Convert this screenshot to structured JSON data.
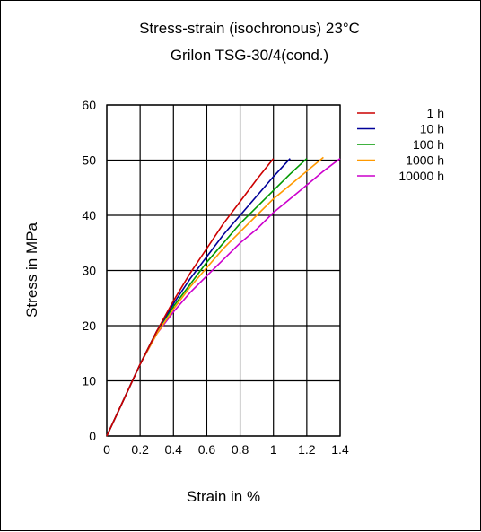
{
  "chart_data": {
    "type": "line",
    "title": "Stress-strain (isochronous) 23°C",
    "subtitle": "Grilon TSG-30/4(cond.)",
    "xlabel": "Strain in %",
    "ylabel": "Stress in MPa",
    "xlim": [
      0,
      1.4
    ],
    "ylim": [
      0,
      60
    ],
    "xticks": [
      "0",
      "0.2",
      "0.4",
      "0.6",
      "0.8",
      "1",
      "1.2",
      "1.4"
    ],
    "yticks": [
      "0",
      "10",
      "20",
      "30",
      "40",
      "50",
      "60"
    ],
    "grid": true,
    "legend_position": "right",
    "series": [
      {
        "name": "1 h",
        "color": "#cc0000",
        "points": [
          [
            0,
            0
          ],
          [
            0.1,
            6.5
          ],
          [
            0.2,
            13
          ],
          [
            0.3,
            19
          ],
          [
            0.4,
            24.5
          ],
          [
            0.5,
            29.5
          ],
          [
            0.6,
            34
          ],
          [
            0.7,
            38.5
          ],
          [
            0.8,
            42.5
          ],
          [
            0.9,
            46.5
          ],
          [
            1.0,
            50.3
          ]
        ]
      },
      {
        "name": "10 h",
        "color": "#000099",
        "points": [
          [
            0,
            0
          ],
          [
            0.1,
            6.5
          ],
          [
            0.2,
            13
          ],
          [
            0.3,
            19
          ],
          [
            0.4,
            24
          ],
          [
            0.5,
            28.5
          ],
          [
            0.6,
            32.5
          ],
          [
            0.7,
            36.5
          ],
          [
            0.8,
            40
          ],
          [
            0.9,
            43.5
          ],
          [
            1.0,
            47
          ],
          [
            1.1,
            50.3
          ]
        ]
      },
      {
        "name": "100 h",
        "color": "#009900",
        "points": [
          [
            0,
            0
          ],
          [
            0.1,
            6.5
          ],
          [
            0.2,
            13
          ],
          [
            0.3,
            19
          ],
          [
            0.4,
            23.5
          ],
          [
            0.5,
            27.5
          ],
          [
            0.6,
            31.5
          ],
          [
            0.7,
            35
          ],
          [
            0.8,
            38.5
          ],
          [
            0.9,
            41.5
          ],
          [
            1.0,
            44.5
          ],
          [
            1.1,
            47.5
          ],
          [
            1.2,
            50.3
          ]
        ]
      },
      {
        "name": "1000 h",
        "color": "#ff9900",
        "points": [
          [
            0,
            0
          ],
          [
            0.1,
            6.5
          ],
          [
            0.2,
            13
          ],
          [
            0.3,
            18.5
          ],
          [
            0.4,
            23
          ],
          [
            0.5,
            27
          ],
          [
            0.6,
            30.5
          ],
          [
            0.7,
            34
          ],
          [
            0.8,
            37
          ],
          [
            0.9,
            40
          ],
          [
            1.0,
            43
          ],
          [
            1.1,
            45.5
          ],
          [
            1.2,
            48
          ],
          [
            1.3,
            50.5
          ]
        ]
      },
      {
        "name": "10000 h",
        "color": "#cc00cc",
        "points": [
          [
            0,
            0
          ],
          [
            0.1,
            6.5
          ],
          [
            0.2,
            13
          ],
          [
            0.3,
            18.5
          ],
          [
            0.4,
            22.5
          ],
          [
            0.5,
            26
          ],
          [
            0.6,
            29
          ],
          [
            0.7,
            32
          ],
          [
            0.8,
            35
          ],
          [
            0.9,
            37.5
          ],
          [
            1.0,
            40.5
          ],
          [
            1.1,
            43
          ],
          [
            1.2,
            45.5
          ],
          [
            1.3,
            48
          ],
          [
            1.4,
            50.3
          ]
        ]
      }
    ]
  }
}
